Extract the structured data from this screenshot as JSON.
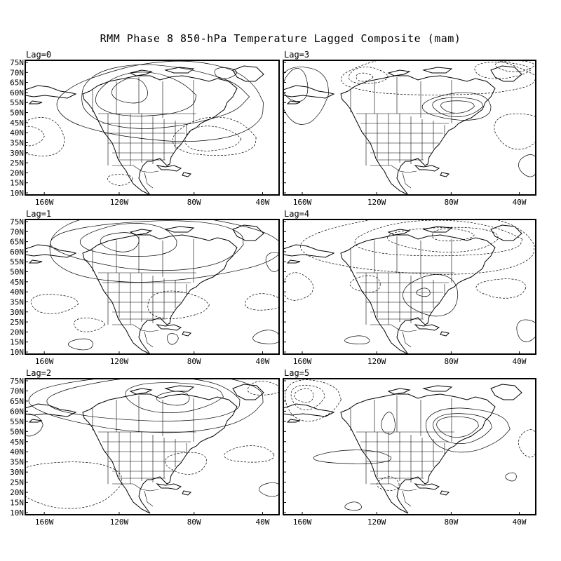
{
  "title": "RMM Phase 8 850-hPa Temperature Lagged Composite (mam)",
  "lat_labels": [
    "75N",
    "70N",
    "65N",
    "60N",
    "55N",
    "50N",
    "45N",
    "40N",
    "35N",
    "30N",
    "25N",
    "20N",
    "15N",
    "10N"
  ],
  "lon_labels": [
    "160W",
    "120W",
    "80W",
    "40W"
  ],
  "panels": [
    {
      "label": "Lag=0"
    },
    {
      "label": "Lag=3"
    },
    {
      "label": "Lag=1"
    },
    {
      "label": "Lag=4"
    },
    {
      "label": "Lag=2"
    },
    {
      "label": "Lag=5"
    }
  ],
  "colors": {
    "warm1": "#ffe8a4",
    "warm2": "#fbbf76",
    "warm3": "#f5904c",
    "warm4": "#e8603a",
    "cool1": "#dcfaff",
    "cool2": "#b2ebfa",
    "cool3": "#8ab8ee",
    "cool4": "#6290dc"
  }
}
